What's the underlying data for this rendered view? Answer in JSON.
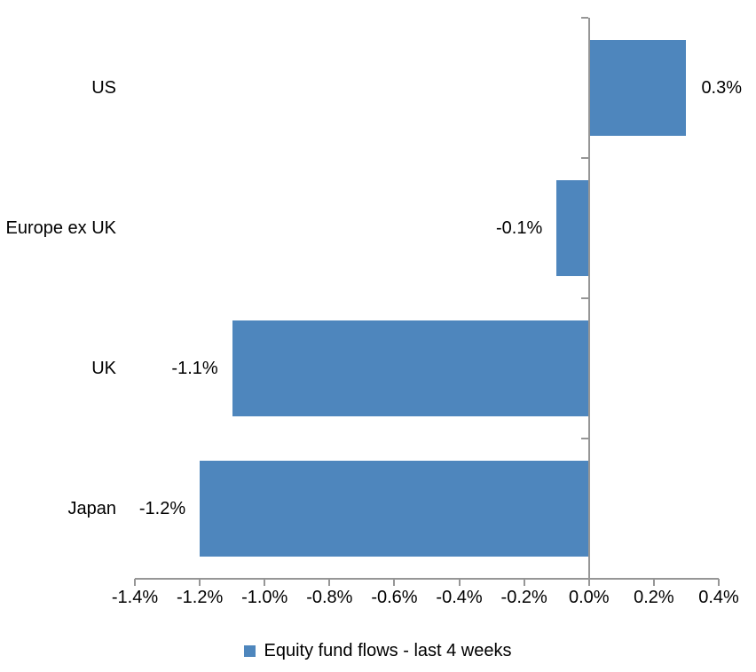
{
  "chart_data": {
    "type": "bar",
    "orientation": "horizontal",
    "title": "",
    "xlabel": "",
    "ylabel": "",
    "categories": [
      "US",
      "Europe ex UK",
      "UK",
      "Japan"
    ],
    "series": [
      {
        "name": "Equity fund flows - last 4 weeks",
        "values": [
          0.3,
          -0.1,
          -1.1,
          -1.2
        ],
        "value_labels": [
          "0.3%",
          "-0.1%",
          "-1.1%",
          "-1.2%"
        ]
      }
    ],
    "xlim": [
      -1.4,
      0.4
    ],
    "x_ticks": [
      -1.4,
      -1.2,
      -1.0,
      -0.8,
      -0.6,
      -0.4,
      -0.2,
      0.0,
      0.2,
      0.4
    ],
    "x_tick_labels": [
      "-1.4%",
      "-1.2%",
      "-1.0%",
      "-0.8%",
      "-0.6%",
      "-0.4%",
      "-0.2%",
      "0.0%",
      "0.2%",
      "0.4%"
    ],
    "grid": false,
    "legend": {
      "position": "bottom",
      "entries": [
        "Equity fund flows - last 4 weeks"
      ]
    },
    "bar_color": "#4E86BD",
    "axis_color": "#969696",
    "text_color": "#000000"
  }
}
